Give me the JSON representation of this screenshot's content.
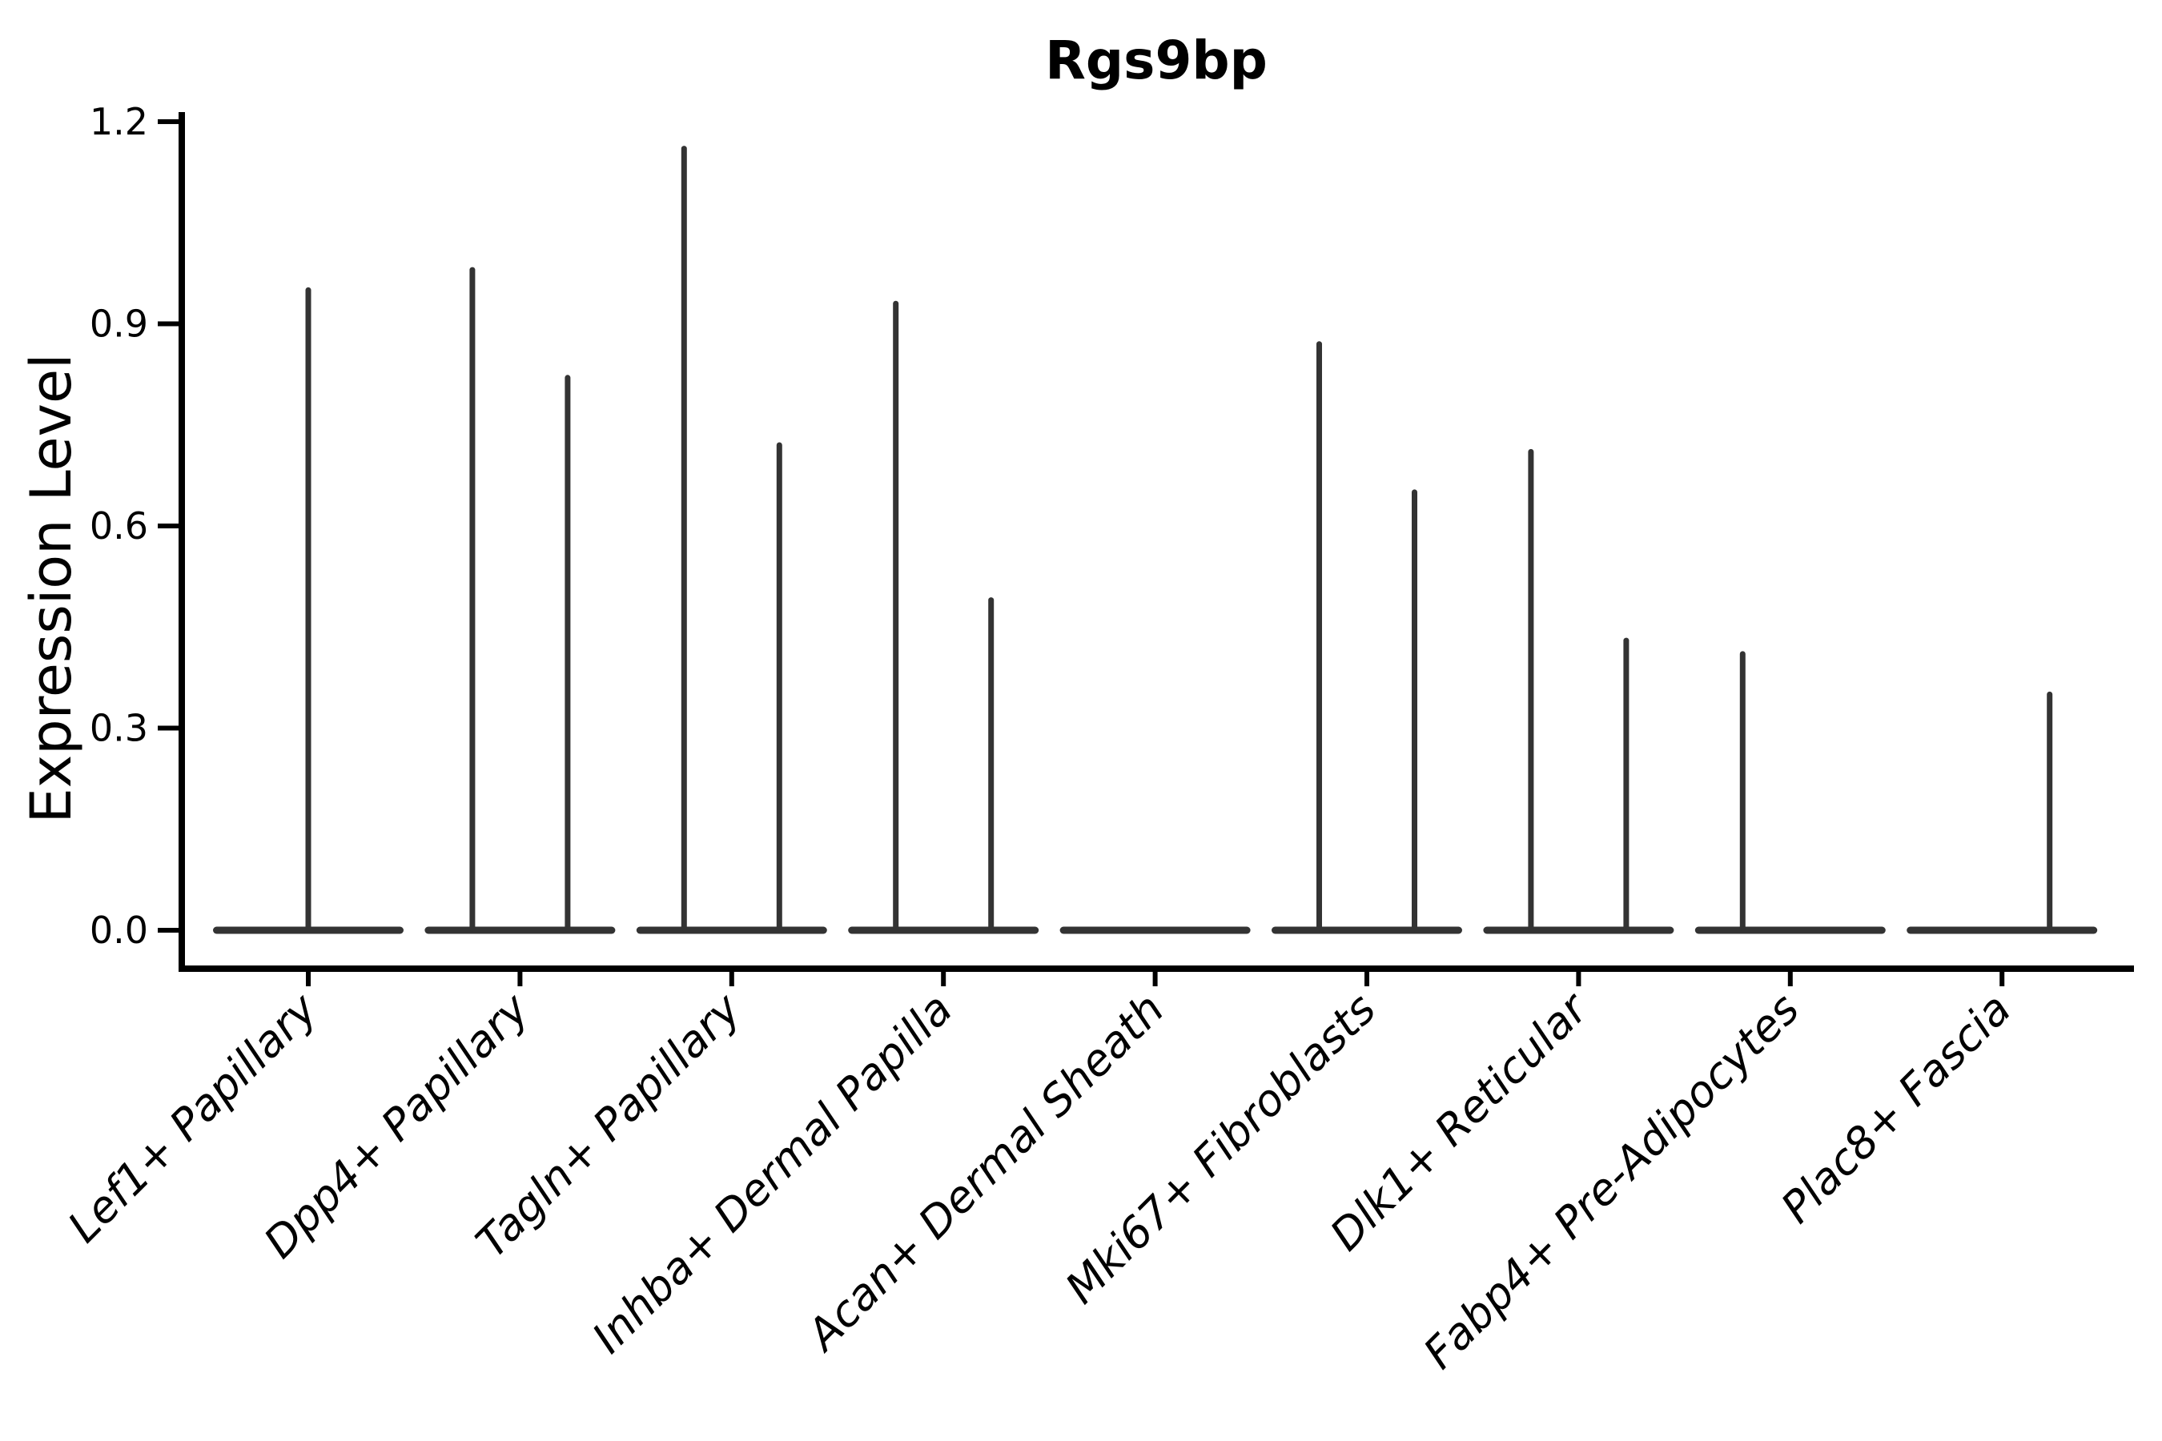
{
  "colors": {
    "ink": "#000000",
    "violin": "#333333",
    "background": "#ffffff"
  },
  "chart_data": {
    "type": "violin",
    "title": "Rgs9bp",
    "xlabel": "",
    "ylabel": "Expression Level",
    "ylim": [
      0,
      1.2
    ],
    "yticks": [
      "0.0",
      "0.3",
      "0.6",
      "0.9",
      "1.2"
    ],
    "grid": false,
    "legend": "none",
    "style": "seurat-split-violin; most mass collapsed at 0 (flat baseline), thin vertical density spikes to max expression; two dodged groups per category",
    "categories": [
      {
        "label": "Lef1+ Papillary",
        "violins": [
          {
            "position": "center",
            "max": 0.95
          }
        ]
      },
      {
        "label": "Dpp4+ Papillary",
        "violins": [
          {
            "position": "left",
            "max": 0.98
          },
          {
            "position": "right",
            "max": 0.82
          }
        ]
      },
      {
        "label": "Tagln+ Papillary",
        "violins": [
          {
            "position": "left",
            "max": 1.16
          },
          {
            "position": "right",
            "max": 0.72
          }
        ]
      },
      {
        "label": "Inhba+ Dermal Papilla",
        "violins": [
          {
            "position": "left",
            "max": 0.93
          },
          {
            "position": "right",
            "max": 0.49
          }
        ]
      },
      {
        "label": "Acan+ Dermal Sheath",
        "violins": []
      },
      {
        "label": "Mki67+ Fibroblasts",
        "violins": [
          {
            "position": "left",
            "max": 0.87
          },
          {
            "position": "right",
            "max": 0.65
          }
        ]
      },
      {
        "label": "Dlk1+ Reticular",
        "violins": [
          {
            "position": "left",
            "max": 0.71
          },
          {
            "position": "right",
            "max": 0.43
          }
        ]
      },
      {
        "label": "Fabp4+ Pre-Adipocytes",
        "violins": [
          {
            "position": "left",
            "max": 0.41
          }
        ]
      },
      {
        "label": "Plac8+ Fascia",
        "violins": [
          {
            "position": "right",
            "max": 0.35
          }
        ]
      }
    ]
  }
}
